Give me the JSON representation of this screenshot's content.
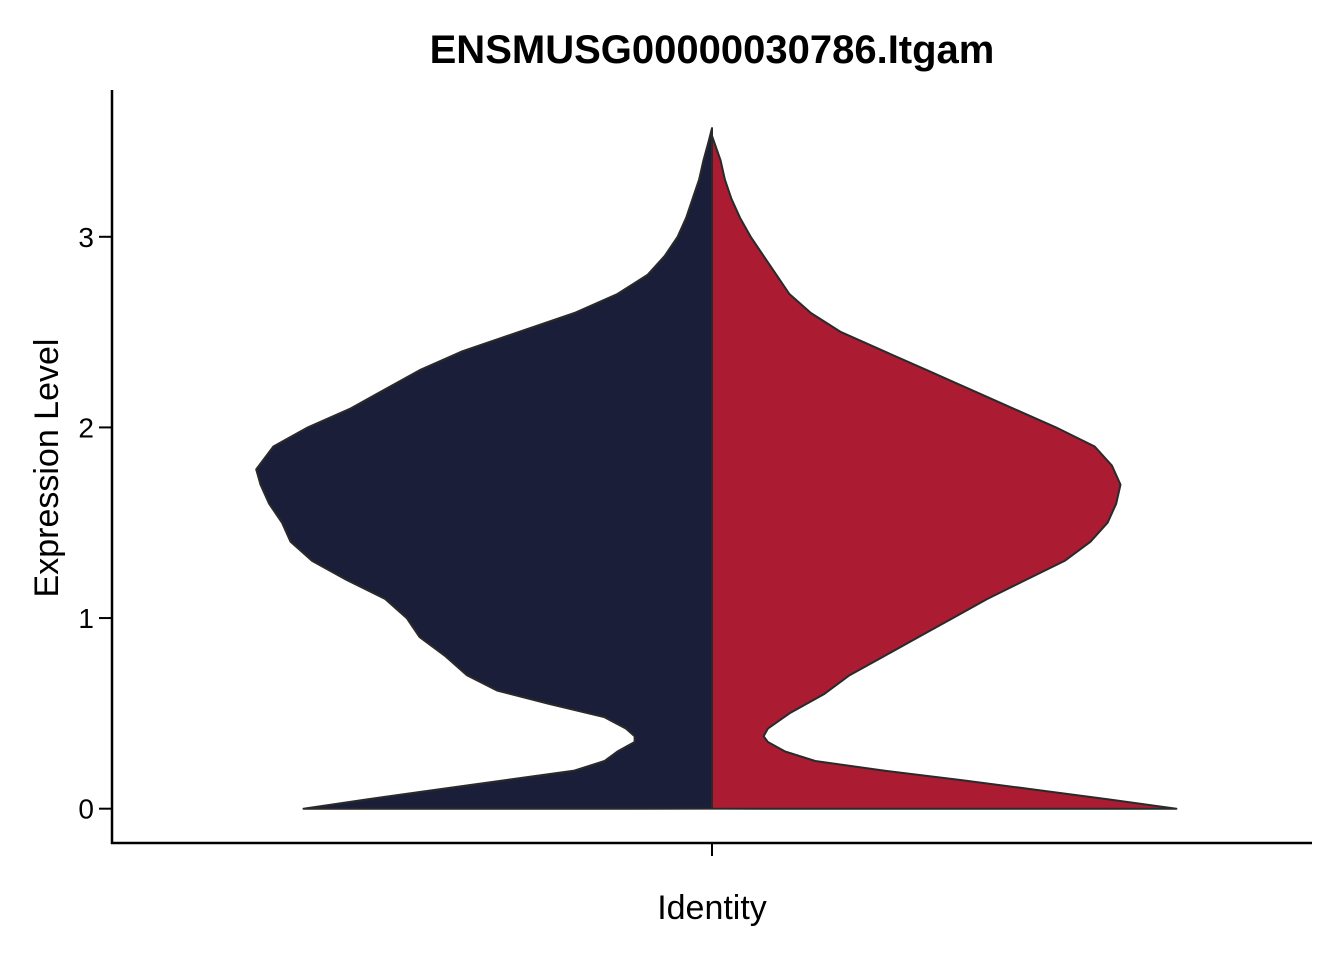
{
  "chart_data": {
    "type": "violin",
    "title": "ENSMUSG00000030786.Itgam",
    "xlabel": "Identity",
    "ylabel": "Expression Level",
    "ylim": [
      -0.18,
      3.77
    ],
    "yticks": [
      0,
      1,
      2,
      3
    ],
    "grid": false,
    "legend": "none",
    "split": true,
    "series": [
      {
        "color": "#1b1e38",
        "side": "left",
        "ymax": 3.57,
        "density": [
          [
            0.0,
            0.95
          ],
          [
            0.05,
            0.8
          ],
          [
            0.1,
            0.64
          ],
          [
            0.15,
            0.48
          ],
          [
            0.2,
            0.32
          ],
          [
            0.25,
            0.25
          ],
          [
            0.3,
            0.22
          ],
          [
            0.35,
            0.18
          ],
          [
            0.38,
            0.18
          ],
          [
            0.42,
            0.2
          ],
          [
            0.48,
            0.25
          ],
          [
            0.55,
            0.38
          ],
          [
            0.62,
            0.5
          ],
          [
            0.7,
            0.57
          ],
          [
            0.8,
            0.62
          ],
          [
            0.9,
            0.68
          ],
          [
            1.0,
            0.71
          ],
          [
            1.1,
            0.76
          ],
          [
            1.2,
            0.85
          ],
          [
            1.3,
            0.93
          ],
          [
            1.4,
            0.98
          ],
          [
            1.5,
            1.0
          ],
          [
            1.6,
            1.03
          ],
          [
            1.7,
            1.05
          ],
          [
            1.78,
            1.06
          ],
          [
            1.9,
            1.02
          ],
          [
            2.0,
            0.94
          ],
          [
            2.1,
            0.84
          ],
          [
            2.2,
            0.76
          ],
          [
            2.3,
            0.68
          ],
          [
            2.4,
            0.58
          ],
          [
            2.5,
            0.45
          ],
          [
            2.6,
            0.32
          ],
          [
            2.7,
            0.22
          ],
          [
            2.8,
            0.15
          ],
          [
            2.9,
            0.11
          ],
          [
            3.0,
            0.08
          ],
          [
            3.1,
            0.06
          ],
          [
            3.2,
            0.045
          ],
          [
            3.3,
            0.03
          ],
          [
            3.4,
            0.02
          ],
          [
            3.5,
            0.008
          ],
          [
            3.57,
            0.0
          ]
        ]
      },
      {
        "color": "#ab1c33",
        "side": "right",
        "ymax": 3.53,
        "density": [
          [
            0.0,
            1.08
          ],
          [
            0.05,
            0.92
          ],
          [
            0.1,
            0.75
          ],
          [
            0.15,
            0.58
          ],
          [
            0.2,
            0.4
          ],
          [
            0.25,
            0.24
          ],
          [
            0.3,
            0.17
          ],
          [
            0.35,
            0.13
          ],
          [
            0.38,
            0.12
          ],
          [
            0.42,
            0.13
          ],
          [
            0.5,
            0.18
          ],
          [
            0.6,
            0.26
          ],
          [
            0.7,
            0.32
          ],
          [
            0.8,
            0.4
          ],
          [
            0.9,
            0.48
          ],
          [
            1.0,
            0.56
          ],
          [
            1.1,
            0.64
          ],
          [
            1.2,
            0.73
          ],
          [
            1.3,
            0.82
          ],
          [
            1.4,
            0.88
          ],
          [
            1.5,
            0.92
          ],
          [
            1.6,
            0.94
          ],
          [
            1.7,
            0.95
          ],
          [
            1.8,
            0.93
          ],
          [
            1.9,
            0.89
          ],
          [
            2.0,
            0.8
          ],
          [
            2.1,
            0.7
          ],
          [
            2.2,
            0.6
          ],
          [
            2.3,
            0.5
          ],
          [
            2.4,
            0.4
          ],
          [
            2.5,
            0.3
          ],
          [
            2.6,
            0.23
          ],
          [
            2.7,
            0.18
          ],
          [
            2.8,
            0.15
          ],
          [
            2.9,
            0.12
          ],
          [
            3.0,
            0.09
          ],
          [
            3.1,
            0.065
          ],
          [
            3.2,
            0.045
          ],
          [
            3.3,
            0.03
          ],
          [
            3.4,
            0.02
          ],
          [
            3.53,
            0.0
          ]
        ]
      }
    ]
  }
}
